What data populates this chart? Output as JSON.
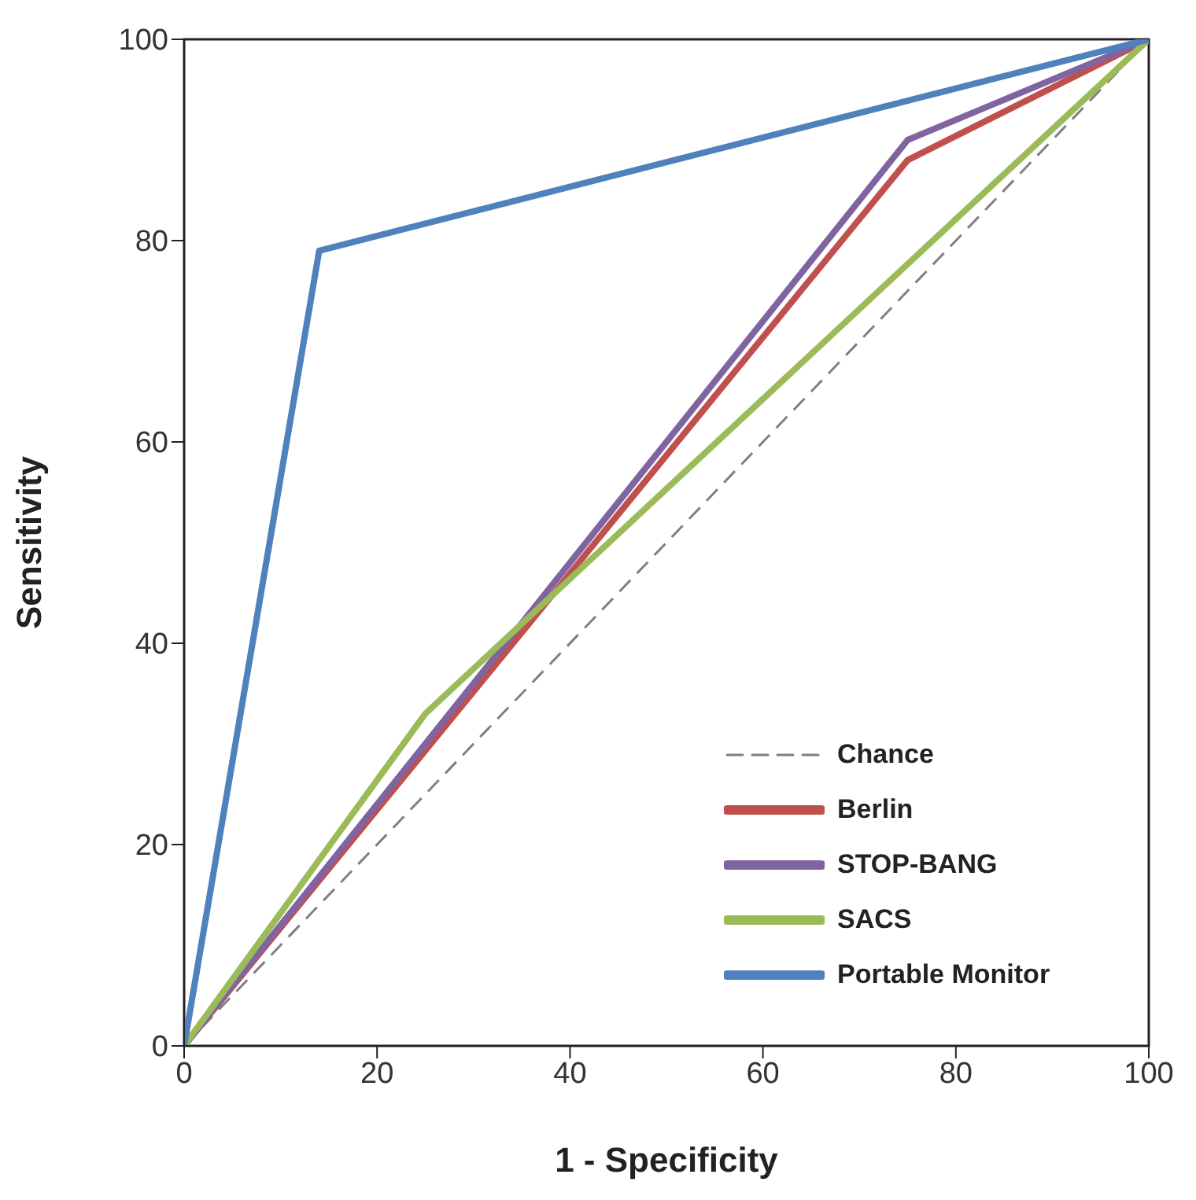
{
  "chart_data": {
    "type": "line",
    "xlabel": "1 - Specificity",
    "ylabel": "Sensitivity",
    "xlim": [
      0,
      100
    ],
    "ylim": [
      0,
      100
    ],
    "xticks": [
      0,
      20,
      40,
      60,
      80,
      100
    ],
    "yticks": [
      0,
      20,
      40,
      60,
      80,
      100
    ],
    "grid": false,
    "legend": "bottom right",
    "marker": "none",
    "series": [
      {
        "name": "Chance",
        "color": "#808080",
        "line_style": "dashed",
        "x": [
          0,
          100
        ],
        "values": [
          0,
          100
        ]
      },
      {
        "name": "Berlin",
        "color": "#c0504d",
        "line_style": "solid",
        "x": [
          0,
          75,
          100
        ],
        "values": [
          0,
          88,
          100
        ]
      },
      {
        "name": "STOP-BANG",
        "color": "#8064a2",
        "line_style": "solid",
        "x": [
          0,
          75,
          100
        ],
        "values": [
          0,
          90,
          100
        ]
      },
      {
        "name": "SACS",
        "color": "#9bbb59",
        "line_style": "solid",
        "x": [
          0,
          25,
          100
        ],
        "values": [
          0,
          33,
          100
        ]
      },
      {
        "name": "Portable Monitor",
        "color": "#4f81bd",
        "line_style": "solid",
        "x": [
          0,
          14,
          100
        ],
        "values": [
          0,
          79,
          100
        ]
      }
    ]
  }
}
